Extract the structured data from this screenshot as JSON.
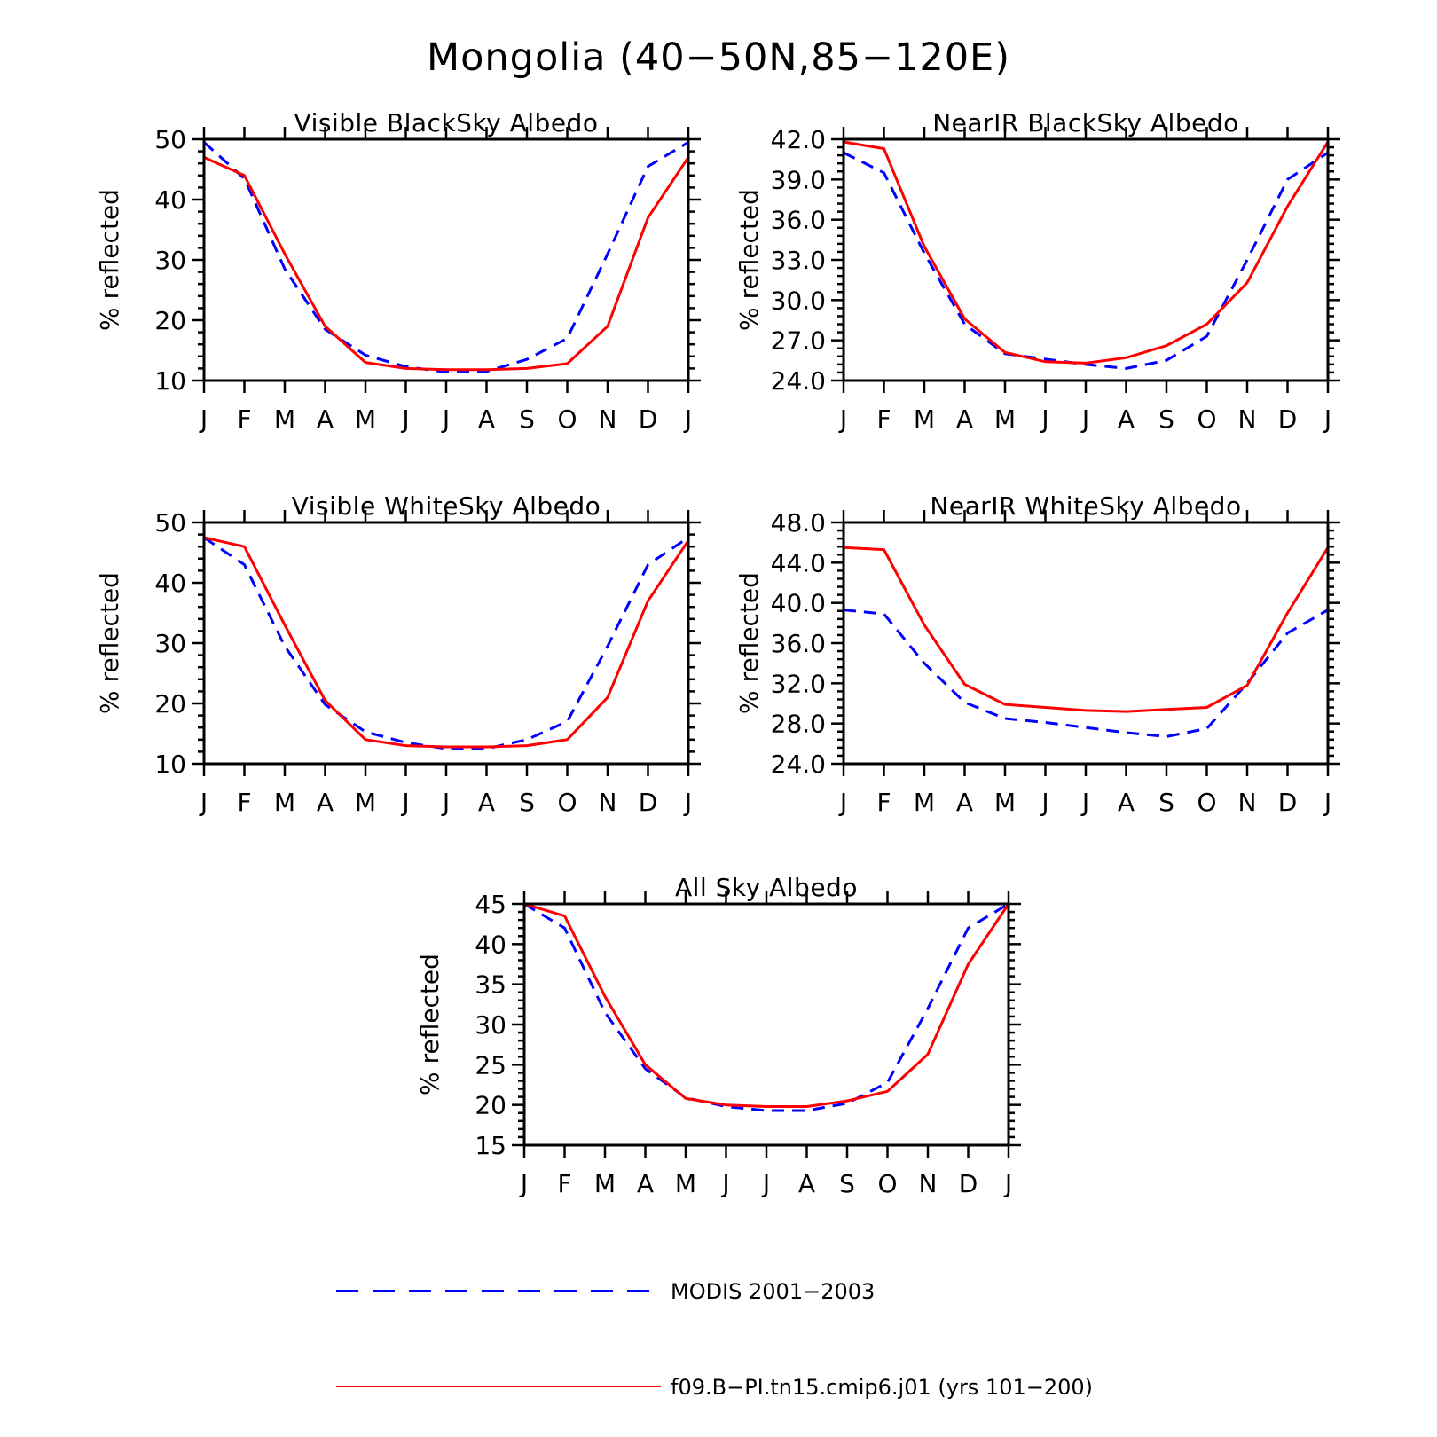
{
  "title": "Mongolia (40−50N,85−120E)",
  "legend": {
    "position": "bottom",
    "entries": [
      {
        "label": "MODIS 2001−2003",
        "color": "#0000ff",
        "style": "dashed"
      },
      {
        "label": "f09.B−PI.tn15.cmip6.j01 (yrs 101−200)",
        "color": "#ff0000",
        "style": "solid"
      }
    ]
  },
  "chart_data": [
    {
      "type": "line",
      "title": "Visible BlackSky Albedo",
      "ylabel": "% reflected",
      "categories": [
        "J",
        "F",
        "M",
        "A",
        "M",
        "J",
        "J",
        "A",
        "S",
        "O",
        "N",
        "D",
        "J"
      ],
      "ylim": [
        10,
        50
      ],
      "yticks": [
        "10",
        "20",
        "30",
        "40",
        "50"
      ],
      "series": [
        {
          "name": "MODIS 2001−2003",
          "values": [
            49.5,
            43.5,
            28.5,
            18.5,
            14.2,
            12.3,
            11.4,
            11.5,
            13.5,
            17.0,
            31.0,
            45.5,
            49.5
          ]
        },
        {
          "name": "f09.B−PI.tn15.cmip6.j01 (yrs 101−200)",
          "values": [
            47.0,
            44.0,
            31.0,
            19.0,
            13.0,
            12.0,
            11.8,
            11.8,
            12.0,
            12.8,
            19.0,
            37.0,
            47.0
          ]
        }
      ]
    },
    {
      "type": "line",
      "title": "NearIR BlackSky Albedo",
      "ylabel": "% reflected",
      "categories": [
        "J",
        "F",
        "M",
        "A",
        "M",
        "J",
        "J",
        "A",
        "S",
        "O",
        "N",
        "D",
        "J"
      ],
      "ylim": [
        24,
        42
      ],
      "yticks": [
        "24.0",
        "27.0",
        "30.0",
        "33.0",
        "36.0",
        "39.0",
        "42.0"
      ],
      "series": [
        {
          "name": "MODIS 2001−2003",
          "values": [
            41.0,
            39.5,
            33.5,
            28.2,
            26.0,
            25.6,
            25.2,
            24.9,
            25.5,
            27.3,
            33.0,
            39.0,
            41.0
          ]
        },
        {
          "name": "f09.B−PI.tn15.cmip6.j01 (yrs 101−200)",
          "values": [
            41.8,
            41.3,
            34.0,
            28.6,
            26.1,
            25.4,
            25.3,
            25.7,
            26.6,
            28.2,
            31.3,
            37.0,
            41.8
          ]
        }
      ]
    },
    {
      "type": "line",
      "title": "Visible WhiteSky Albedo",
      "ylabel": "% reflected",
      "categories": [
        "J",
        "F",
        "M",
        "A",
        "M",
        "J",
        "J",
        "A",
        "S",
        "O",
        "N",
        "D",
        "J"
      ],
      "ylim": [
        10,
        50
      ],
      "yticks": [
        "10",
        "20",
        "30",
        "40",
        "50"
      ],
      "series": [
        {
          "name": "MODIS 2001−2003",
          "values": [
            47.5,
            43.0,
            29.5,
            19.8,
            15.3,
            13.5,
            12.5,
            12.5,
            14.0,
            17.0,
            29.5,
            43.0,
            47.5
          ]
        },
        {
          "name": "f09.B−PI.tn15.cmip6.j01 (yrs 101−200)",
          "values": [
            47.5,
            46.0,
            33.0,
            20.5,
            14.0,
            13.0,
            12.8,
            12.8,
            13.0,
            14.0,
            21.0,
            37.0,
            47.0
          ]
        }
      ]
    },
    {
      "type": "line",
      "title": "NearIR WhiteSky Albedo",
      "ylabel": "% reflected",
      "categories": [
        "J",
        "F",
        "M",
        "A",
        "M",
        "J",
        "J",
        "A",
        "S",
        "O",
        "N",
        "D",
        "J"
      ],
      "ylim": [
        24,
        48
      ],
      "yticks": [
        "24.0",
        "28.0",
        "32.0",
        "36.0",
        "40.0",
        "44.0",
        "48.0"
      ],
      "series": [
        {
          "name": "MODIS 2001−2003",
          "values": [
            39.3,
            38.9,
            34.0,
            30.1,
            28.5,
            28.1,
            27.6,
            27.1,
            26.7,
            27.5,
            32.0,
            37.0,
            39.3
          ]
        },
        {
          "name": "f09.B−PI.tn15.cmip6.j01 (yrs 101−200)",
          "values": [
            45.5,
            45.3,
            37.8,
            31.9,
            29.9,
            29.6,
            29.3,
            29.2,
            29.4,
            29.6,
            31.8,
            39.0,
            45.5
          ]
        }
      ]
    },
    {
      "type": "line",
      "title": "All Sky Albedo",
      "ylabel": "% reflected",
      "categories": [
        "J",
        "F",
        "M",
        "A",
        "M",
        "J",
        "J",
        "A",
        "S",
        "O",
        "N",
        "D",
        "J"
      ],
      "ylim": [
        15,
        45
      ],
      "yticks": [
        "15",
        "20",
        "25",
        "30",
        "35",
        "40",
        "45"
      ],
      "series": [
        {
          "name": "MODIS 2001−2003",
          "values": [
            45.0,
            42.0,
            31.5,
            24.5,
            20.9,
            19.8,
            19.3,
            19.3,
            20.2,
            22.8,
            32.0,
            42.0,
            45.0
          ]
        },
        {
          "name": "f09.B−PI.tn15.cmip6.j01 (yrs 101−200)",
          "values": [
            45.0,
            43.5,
            33.5,
            25.0,
            20.8,
            20.0,
            19.8,
            19.8,
            20.5,
            21.7,
            26.3,
            37.5,
            45.0
          ]
        }
      ]
    }
  ]
}
